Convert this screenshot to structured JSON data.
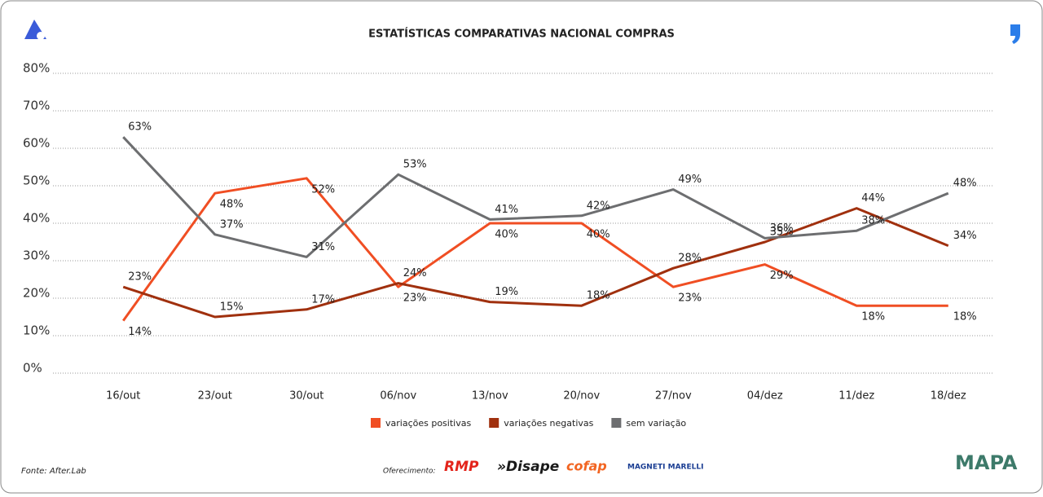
{
  "chart_data": {
    "type": "line",
    "title": "ESTATÍSTICAS COMPARATIVAS NACIONAL COMPRAS",
    "categories": [
      "16/out",
      "23/out",
      "30/out",
      "06/nov",
      "13/nov",
      "20/nov",
      "27/nov",
      "04/dez",
      "11/dez",
      "18/dez"
    ],
    "series": [
      {
        "name": "variações positivas",
        "color": "#f04e23",
        "values": [
          14,
          48,
          52,
          23,
          40,
          40,
          23,
          29,
          18,
          18
        ],
        "value_labels": [
          "14%",
          "48%",
          "52%",
          "23%",
          "40%",
          "40%",
          "23%",
          "29%",
          "18%",
          "18%"
        ]
      },
      {
        "name": "variações negativas",
        "color": "#a0300e",
        "values": [
          23,
          15,
          17,
          24,
          19,
          18,
          28,
          35,
          44,
          34
        ],
        "value_labels": [
          "23%",
          "15%",
          "17%",
          "24%",
          "19%",
          "18%",
          "28%",
          "35%",
          "44%",
          "34%"
        ]
      },
      {
        "name": "sem variação",
        "color": "#6d6e70",
        "values": [
          63,
          37,
          31,
          53,
          41,
          42,
          49,
          36,
          38,
          48
        ],
        "value_labels": [
          "63%",
          "37%",
          "31%",
          "53%",
          "41%",
          "42%",
          "49%",
          "36%",
          "38%",
          "48%"
        ]
      }
    ],
    "ylim": [
      0,
      80
    ],
    "yticks": [
      {
        "value": 0,
        "label": "0%"
      },
      {
        "value": 10,
        "label": "10%"
      },
      {
        "value": 20,
        "label": "20%"
      },
      {
        "value": 30,
        "label": "30%"
      },
      {
        "value": 40,
        "label": "40%"
      },
      {
        "value": 50,
        "label": "50%"
      },
      {
        "value": 60,
        "label": "60%"
      },
      {
        "value": 70,
        "label": "70%"
      },
      {
        "value": 80,
        "label": "80%"
      }
    ],
    "grid": true,
    "legend": "bottom"
  },
  "footer": {
    "source": "Fonte: After.Lab",
    "sponsor_label": "Oferecimento:",
    "sponsors": [
      "RMP",
      "»Disape",
      "cofap",
      "MAGNETI MARELLI"
    ],
    "brand": "MAPA"
  }
}
